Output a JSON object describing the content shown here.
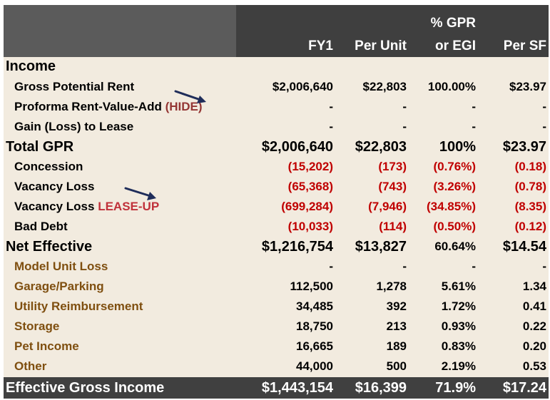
{
  "header": {
    "col_fy1": "FY1",
    "col_per_unit": "Per Unit",
    "col_gpr_line1": "% GPR",
    "col_gpr_line2": "or EGI",
    "col_per_sf": "Per SF"
  },
  "rows": [
    {
      "label": "Income",
      "style": "section"
    },
    {
      "label": "Gross Potential Rent",
      "fy1": "$2,006,640",
      "per_unit": "$22,803",
      "pct": "100.00%",
      "per_sf": "$23.97"
    },
    {
      "label": "Proforma Rent-Value-Add",
      "tag": "(HIDE)",
      "fy1": "-",
      "per_unit": "-",
      "pct": "-",
      "per_sf": "-"
    },
    {
      "label": "Gain (Loss) to Lease",
      "fy1": "-",
      "per_unit": "-",
      "pct": "-",
      "per_sf": "-"
    },
    {
      "label": "Total GPR",
      "style": "total",
      "fy1": "$2,006,640",
      "per_unit": "$22,803",
      "pct": "100%",
      "per_sf": "$23.97"
    },
    {
      "label": "Concession",
      "fy1": "(15,202)",
      "per_unit": "(173)",
      "pct": "(0.76%)",
      "per_sf": "(0.18)"
    },
    {
      "label": "Vacancy Loss",
      "fy1": "(65,368)",
      "per_unit": "(743)",
      "pct": "(3.26%)",
      "per_sf": "(0.78)"
    },
    {
      "label": "Vacancy Loss",
      "tag": "LEASE-UP",
      "fy1": "(699,284)",
      "per_unit": "(7,946)",
      "pct": "(34.85%)",
      "per_sf": "(8.35)"
    },
    {
      "label": "Bad Debt",
      "fy1": "(10,033)",
      "per_unit": "(114)",
      "pct": "(0.50%)",
      "per_sf": "(0.12)"
    },
    {
      "label": "Net Effective",
      "style": "total",
      "fy1": "$1,216,754",
      "per_unit": "$13,827",
      "pct": "60.64%",
      "per_sf": "$14.54"
    },
    {
      "label": "Model Unit Loss",
      "fy1": "-",
      "per_unit": "-",
      "pct": "-",
      "per_sf": "-"
    },
    {
      "label": "Garage/Parking",
      "fy1": "112,500",
      "per_unit": "1,278",
      "pct": "5.61%",
      "per_sf": "1.34"
    },
    {
      "label": "Utility Reimbursement",
      "fy1": "34,485",
      "per_unit": "392",
      "pct": "1.72%",
      "per_sf": "0.41"
    },
    {
      "label": "Storage",
      "fy1": "18,750",
      "per_unit": "213",
      "pct": "0.93%",
      "per_sf": "0.22"
    },
    {
      "label": "Pet Income",
      "fy1": "16,665",
      "per_unit": "189",
      "pct": "0.83%",
      "per_sf": "0.20"
    },
    {
      "label": "Other",
      "fy1": "44,000",
      "per_unit": "500",
      "pct": "2.19%",
      "per_sf": "0.53"
    }
  ],
  "footer": {
    "label": "Effective Gross Income",
    "fy1": "$1,443,154",
    "per_unit": "$16,399",
    "pct": "71.9%",
    "per_sf": "$17.24"
  },
  "colors": {
    "header_dark": "#3f3f3f",
    "header_gray": "#5b5b5b",
    "body_bg": "#f2ebdf",
    "negative_red": "#c00000",
    "other_income_brown": "#7f4f10",
    "arrow_navy": "#1f2d5a"
  },
  "icons": [
    "annotation-arrow-icon",
    "annotation-arrow-icon"
  ]
}
